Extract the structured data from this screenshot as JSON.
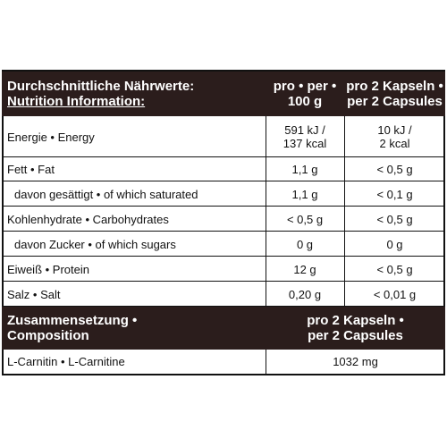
{
  "header": {
    "title_lines": [
      "Durchschnittliche Nährwerte:",
      "Nutrition Information:"
    ],
    "col1_lines": [
      "pro • per •",
      "100 g"
    ],
    "col2_lines": [
      "pro 2 Kapseln •",
      "per 2 Capsules"
    ]
  },
  "rows": [
    [
      [
        "Energie • Energy"
      ],
      [
        "591 kJ /",
        "137 kcal"
      ],
      [
        "10 kJ /",
        "2 kcal"
      ]
    ],
    [
      [
        "Fett • Fat"
      ],
      [
        "1,1 g"
      ],
      [
        "< 0,5 g"
      ]
    ],
    [
      [
        "davon gesättigt • of which saturated"
      ],
      [
        "1,1 g"
      ],
      [
        "< 0,1 g"
      ]
    ],
    [
      [
        "Kohlenhydrate • Carbohydrates"
      ],
      [
        "< 0,5 g"
      ],
      [
        "< 0,5 g"
      ]
    ],
    [
      [
        "davon Zucker • of which sugars"
      ],
      [
        "0 g"
      ],
      [
        "0 g"
      ]
    ],
    [
      [
        "Eiweiß • Protein"
      ],
      [
        "12 g"
      ],
      [
        "< 0,5 g"
      ]
    ],
    [
      [
        "Salz • Salt"
      ],
      [
        "0,20 g"
      ],
      [
        "< 0,01 g"
      ]
    ]
  ],
  "composition": {
    "title_lines": [
      "Zusammensetzung •",
      "Composition"
    ],
    "col_lines": [
      "pro 2 Kapseln •",
      "per 2 Capsules"
    ],
    "rows": [
      [
        [
          "L-Carnitin • L-Carnitine"
        ],
        [
          "1032 mg"
        ]
      ]
    ]
  }
}
